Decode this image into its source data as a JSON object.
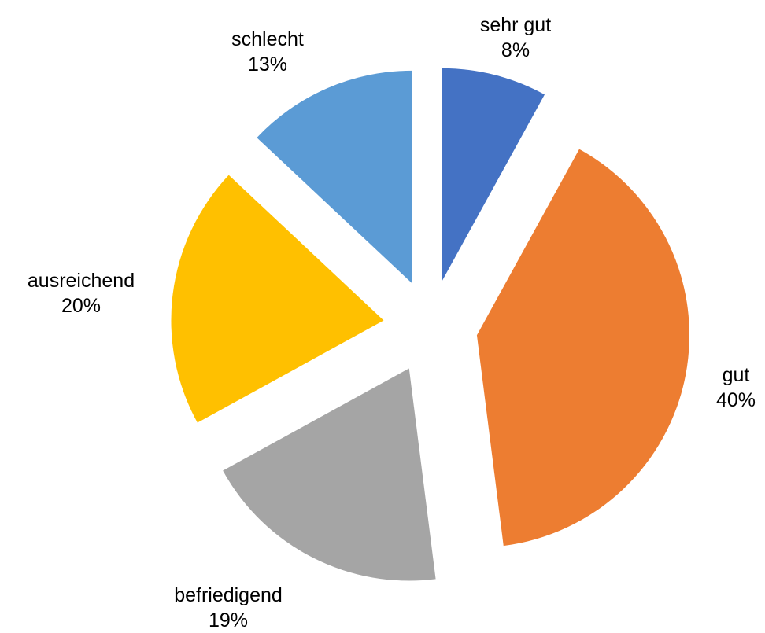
{
  "chart_data": {
    "type": "pie",
    "categories": [
      "sehr gut",
      "gut",
      "befriedigend",
      "ausreichend",
      "schlecht"
    ],
    "values": [
      8,
      40,
      19,
      20,
      13
    ],
    "value_labels": [
      "8%",
      "40%",
      "19%",
      "20%",
      "13%"
    ],
    "colors": [
      "#4472c4",
      "#ed7d31",
      "#a5a5a5",
      "#ffc000",
      "#5b9bd5"
    ],
    "start_angle": 0,
    "direction": "clockwise",
    "exploded": true
  }
}
